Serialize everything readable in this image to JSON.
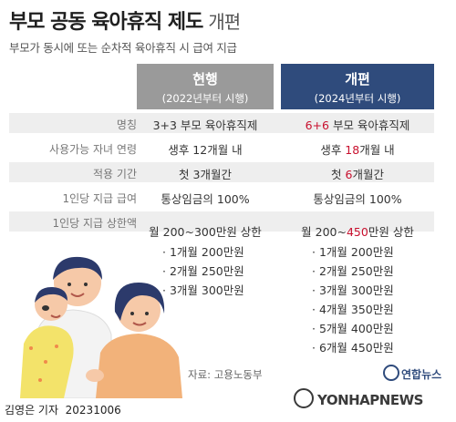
{
  "title": {
    "main": "부모 공동 육아휴직 제도",
    "suffix": "개편"
  },
  "subtitle": "부모가 동시에 또는 순차적 육아휴직 시 급여 지급",
  "columns": {
    "current": {
      "label": "현행",
      "sub": "(2022년부터 시행)"
    },
    "new": {
      "label": "개편",
      "sub": "(2024년부터 시행)"
    }
  },
  "rows": [
    {
      "label": "명칭",
      "current": "3+3 부모 육아휴직제",
      "new_prefix": "",
      "new_hl": "6+6",
      "new_suffix": " 부모 육아휴직제"
    },
    {
      "label": "사용가능 자녀 연령",
      "current": "생후 12개월 내",
      "new_prefix": "생후 ",
      "new_hl": "18",
      "new_suffix": "개월 내"
    },
    {
      "label": "적용 기간",
      "current": "첫 3개월간",
      "new_prefix": "첫 ",
      "new_hl": "6",
      "new_suffix": "개월간"
    },
    {
      "label": "1인당 지급 급여",
      "current": "통상임금의 100%",
      "new_prefix": "통상임금의 100%",
      "new_hl": "",
      "new_suffix": ""
    },
    {
      "label": "1인당 지급 상한액",
      "current": "월 200~300만원 상한",
      "new_prefix": "월 200~",
      "new_hl": "450",
      "new_suffix": "만원 상한"
    }
  ],
  "current_list": [
    "1개월 200만원",
    "2개월 250만원",
    "3개월 300만원"
  ],
  "new_list": [
    "1개월 200만원",
    "2개월 250만원",
    "3개월 300만원",
    "4개월 350만원",
    "5개월 400만원",
    "6개월 450만원"
  ],
  "source": "자료: 고용노동부",
  "footer": {
    "author": "김영은 기자",
    "date": "20231006"
  },
  "logo_text": "연합뉴스",
  "watermark": "YONHAPNEWS",
  "colors": {
    "current_header": "#9a9a9a",
    "new_header": "#2f4b7c",
    "highlight": "#c8102e"
  }
}
